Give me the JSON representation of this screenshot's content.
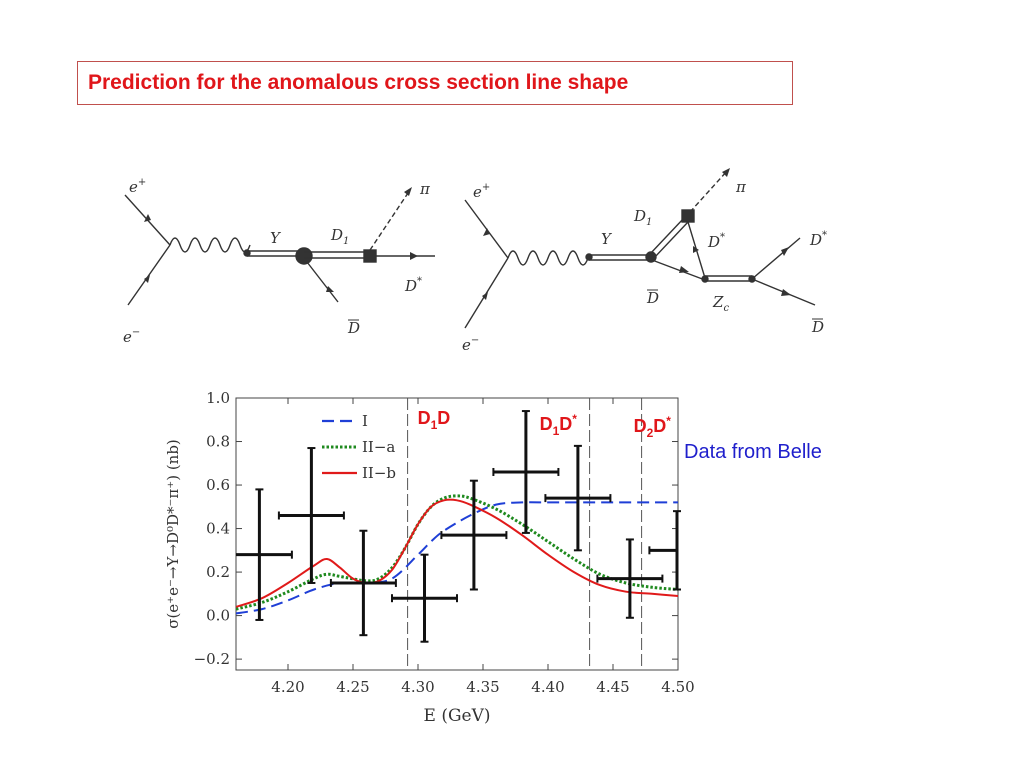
{
  "slide": {
    "title": "Prediction for the anomalous cross section line shape",
    "side_note": "Data from Belle"
  },
  "diagram_left": {
    "labels": {
      "e_plus": "e",
      "e_plus_sup": "+",
      "e_minus": "e",
      "e_minus_sup": "−",
      "y": "Y",
      "d1": "D",
      "d1_sub": "1",
      "pi": "π",
      "dstar": "D",
      "dstar_sup": "*",
      "dbar": "D"
    }
  },
  "diagram_right": {
    "labels": {
      "e_plus": "e",
      "e_plus_sup": "+",
      "e_minus": "e",
      "e_minus_sup": "−",
      "y": "Y",
      "d1": "D",
      "d1_sub": "1",
      "pi": "π",
      "dstar_inner": "D",
      "dstar_inner_sup": "*",
      "dstar_out": "D",
      "dstar_out_sup": "*",
      "dbar_inner": "D",
      "zc": "Z",
      "zc_sub": "c",
      "dbar_out": "D"
    }
  },
  "chart_data": {
    "type": "line",
    "xlabel": "E (GeV)",
    "ylabel": "σ(e⁺e⁻→Y→D⁰D*⁻π⁺) (nb)",
    "xlim": [
      4.16,
      4.5
    ],
    "ylim": [
      -0.25,
      1.0
    ],
    "xticks": [
      "4.20",
      "4.25",
      "4.30",
      "4.35",
      "4.40",
      "4.45",
      "4.50"
    ],
    "xtick_values": [
      4.2,
      4.25,
      4.3,
      4.35,
      4.4,
      4.45,
      4.5
    ],
    "yticks": [
      "1.0",
      "0.8",
      "0.6",
      "0.4",
      "0.2",
      "0.0",
      "−0.2"
    ],
    "ytick_values": [
      1.0,
      0.8,
      0.6,
      0.4,
      0.2,
      0.0,
      -0.2
    ],
    "legend_position": "top-left",
    "thresholds": [
      {
        "x": 4.292,
        "label": "D",
        "label_sub": "1",
        "label_end": "D",
        "label_sup": ""
      },
      {
        "x": 4.432,
        "label": "D",
        "label_sub": "1",
        "label_end": "D",
        "label_sup": "*"
      },
      {
        "x": 4.472,
        "label": "D",
        "label_sub": "2",
        "label_end": "D",
        "label_sup": "*"
      }
    ],
    "series": [
      {
        "name": "I",
        "color": "#1f3fd6",
        "style": "dashed",
        "x": [
          4.16,
          4.18,
          4.2,
          4.22,
          4.24,
          4.26,
          4.28,
          4.3,
          4.31,
          4.32,
          4.34,
          4.36,
          4.38,
          4.4,
          4.42,
          4.44,
          4.46,
          4.48,
          4.5
        ],
        "y": [
          0.01,
          0.03,
          0.07,
          0.12,
          0.15,
          0.15,
          0.17,
          0.28,
          0.34,
          0.39,
          0.46,
          0.51,
          0.52,
          0.52,
          0.52,
          0.52,
          0.52,
          0.52,
          0.52
        ]
      },
      {
        "name": "II−a",
        "color": "#1f8a1f",
        "style": "dotted",
        "x": [
          4.16,
          4.18,
          4.2,
          4.22,
          4.23,
          4.24,
          4.26,
          4.27,
          4.28,
          4.29,
          4.3,
          4.31,
          4.32,
          4.33,
          4.34,
          4.36,
          4.38,
          4.4,
          4.42,
          4.44,
          4.46,
          4.48,
          4.5
        ],
        "y": [
          0.03,
          0.06,
          0.11,
          0.17,
          0.19,
          0.18,
          0.16,
          0.17,
          0.22,
          0.31,
          0.42,
          0.5,
          0.54,
          0.55,
          0.54,
          0.49,
          0.42,
          0.34,
          0.26,
          0.19,
          0.15,
          0.13,
          0.12
        ]
      },
      {
        "name": "II−b",
        "color": "#e01a1a",
        "style": "solid",
        "x": [
          4.16,
          4.18,
          4.2,
          4.22,
          4.23,
          4.24,
          4.25,
          4.26,
          4.27,
          4.28,
          4.29,
          4.3,
          4.31,
          4.32,
          4.33,
          4.34,
          4.36,
          4.38,
          4.4,
          4.42,
          4.44,
          4.46,
          4.48,
          4.5
        ],
        "y": [
          0.04,
          0.08,
          0.15,
          0.23,
          0.26,
          0.22,
          0.17,
          0.15,
          0.16,
          0.21,
          0.31,
          0.42,
          0.5,
          0.53,
          0.53,
          0.51,
          0.45,
          0.37,
          0.28,
          0.2,
          0.14,
          0.11,
          0.1,
          0.09
        ]
      }
    ],
    "data_points": {
      "name": "Belle",
      "points": [
        {
          "x": 4.178,
          "y": 0.28,
          "xerr": 0.025,
          "yerr": 0.3
        },
        {
          "x": 4.218,
          "y": 0.46,
          "xerr": 0.025,
          "yerr": 0.31
        },
        {
          "x": 4.258,
          "y": 0.15,
          "xerr": 0.025,
          "yerr": 0.24
        },
        {
          "x": 4.305,
          "y": 0.08,
          "xerr": 0.025,
          "yerr": 0.2
        },
        {
          "x": 4.343,
          "y": 0.37,
          "xerr": 0.025,
          "yerr": 0.25
        },
        {
          "x": 4.383,
          "y": 0.66,
          "xerr": 0.025,
          "yerr": 0.28
        },
        {
          "x": 4.423,
          "y": 0.54,
          "xerr": 0.025,
          "yerr": 0.24
        },
        {
          "x": 4.463,
          "y": 0.17,
          "xerr": 0.025,
          "yerr": 0.18
        },
        {
          "x": 4.503,
          "y": 0.3,
          "xerr": 0.025,
          "yerr": 0.18
        }
      ]
    }
  }
}
